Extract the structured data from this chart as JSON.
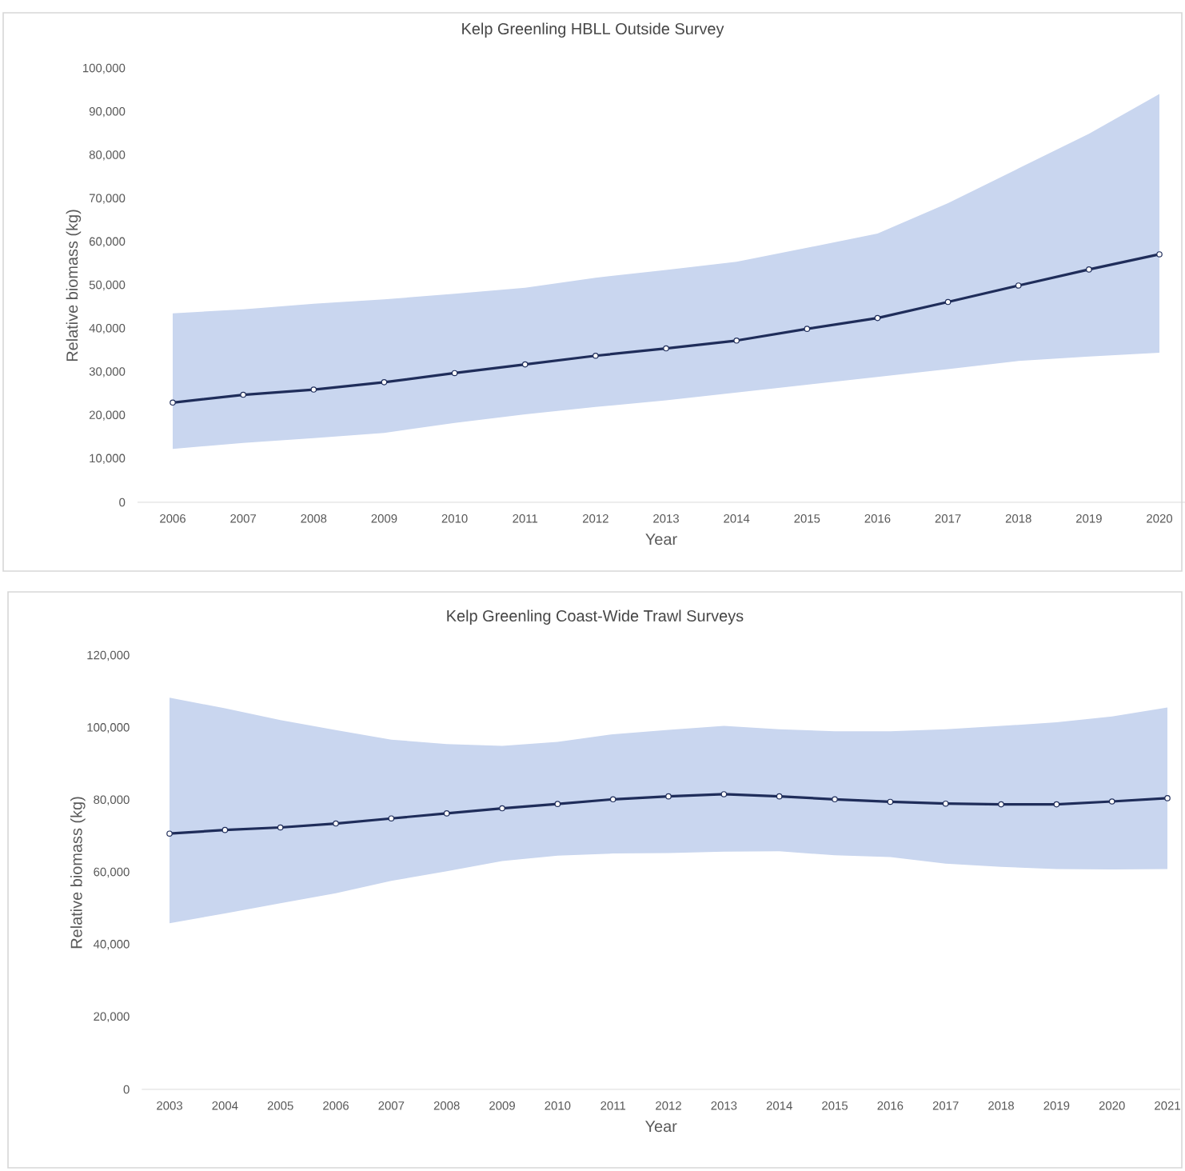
{
  "chart_data": [
    {
      "type": "line",
      "title": "Kelp Greenling HBLL Outside Survey",
      "xlabel": "Year",
      "ylabel": "Relative biomass (kg)",
      "categories": [
        "2006",
        "2007",
        "2008",
        "2009",
        "2010",
        "2011",
        "2012",
        "2013",
        "2014",
        "2015",
        "2016",
        "2017",
        "2018",
        "2019",
        "2020"
      ],
      "ylim": [
        0,
        100000
      ],
      "yticks": [
        0,
        {
          "value": 10000,
          "label": "10,000"
        },
        {
          "value": 20000,
          "label": "20,000"
        },
        {
          "value": 30000,
          "label": "30,000"
        },
        {
          "value": 40000,
          "label": "40,000"
        },
        {
          "value": 50000,
          "label": "50,000"
        },
        {
          "value": 60000,
          "label": "60,000"
        },
        {
          "value": 70000,
          "label": "70,000"
        },
        {
          "value": 80000,
          "label": "80,000"
        },
        {
          "value": 90000,
          "label": "90,000"
        },
        {
          "value": 100000,
          "label": "100,000"
        }
      ],
      "marker": "circle",
      "grid": false,
      "series": [
        {
          "color": "#1f2d5a",
          "values": [
            23000,
            24800,
            26000,
            27700,
            29800,
            31800,
            33800,
            35500,
            37300,
            40000,
            42500,
            46200,
            50000,
            53700,
            57200
          ],
          "lower": [
            12300,
            13700,
            14800,
            16000,
            18300,
            20300,
            22000,
            23500,
            25300,
            27100,
            28900,
            30700,
            32600,
            33600,
            34500
          ],
          "upper": [
            43600,
            44500,
            45800,
            46800,
            48100,
            49500,
            51800,
            53600,
            55500,
            58700,
            62000,
            69000,
            77000,
            85000,
            94200
          ]
        }
      ]
    },
    {
      "type": "line",
      "title": "Kelp Greenling Coast-Wide Trawl Surveys",
      "xlabel": "Year",
      "ylabel": "Relative biomass (kg)",
      "categories": [
        "2003",
        "2004",
        "2005",
        "2006",
        "2007",
        "2008",
        "2009",
        "2010",
        "2011",
        "2012",
        "2013",
        "2014",
        "2015",
        "2016",
        "2017",
        "2018",
        "2019",
        "2020",
        "2021"
      ],
      "ylim": [
        0,
        120000
      ],
      "yticks": [
        0,
        {
          "value": 20000,
          "label": "20,000"
        },
        {
          "value": 40000,
          "label": "40,000"
        },
        {
          "value": 60000,
          "label": "60,000"
        },
        {
          "value": 80000,
          "label": "80,000"
        },
        {
          "value": 100000,
          "label": "100,000"
        },
        {
          "value": 120000,
          "label": "120,000"
        }
      ],
      "marker": "circle",
      "grid": false,
      "series": [
        {
          "color": "#1f2d5a",
          "values": [
            70800,
            71800,
            72500,
            73600,
            75000,
            76400,
            77800,
            79000,
            80300,
            81100,
            81700,
            81100,
            80300,
            79600,
            79100,
            78900,
            78900,
            79700,
            80600
          ],
          "lower": [
            46000,
            48700,
            51500,
            54300,
            57700,
            60400,
            63200,
            64700,
            65300,
            65400,
            65800,
            65900,
            64800,
            64300,
            62500,
            61600,
            61000,
            60900,
            61000
          ],
          "upper": [
            108400,
            105500,
            102200,
            99450,
            96800,
            95600,
            95100,
            96200,
            98300,
            99500,
            100600,
            99700,
            99100,
            99100,
            99700,
            100600,
            101600,
            103200,
            105700
          ]
        }
      ]
    }
  ]
}
